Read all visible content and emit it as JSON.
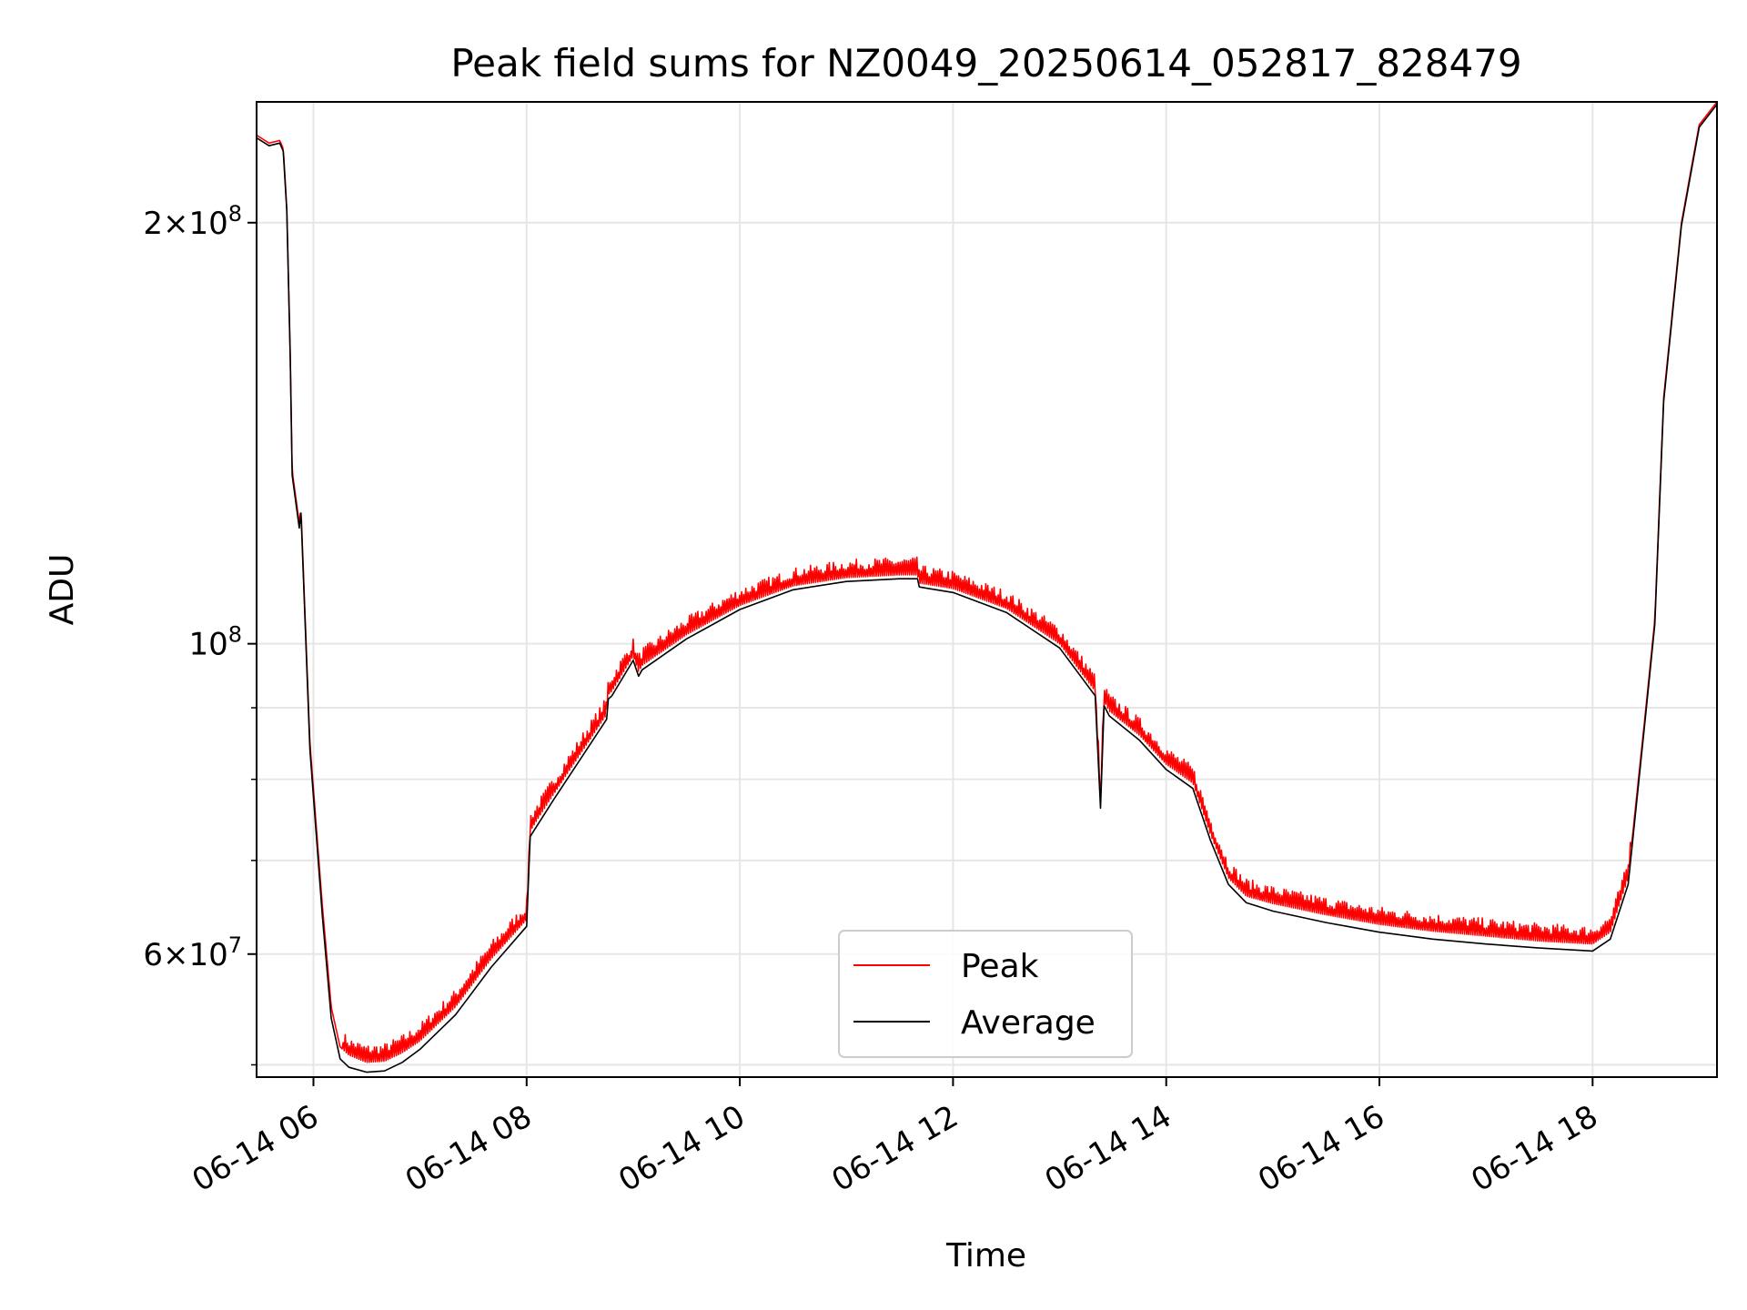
{
  "chart_data": {
    "type": "line",
    "title": "Peak field sums for NZ0049_20250614_052817_828479",
    "xlabel": "Time",
    "ylabel": "ADU",
    "yscale": "log",
    "ylim": [
      49000000,
      244000000
    ],
    "xlim": [
      "2025-06-14 05:28",
      "2025-06-14 19:10"
    ],
    "grid": true,
    "legend_position": "lower center",
    "x_tick_labels": [
      "06-14 06",
      "06-14 08",
      "06-14 10",
      "06-14 12",
      "06-14 14",
      "06-14 16",
      "06-14 18"
    ],
    "x_tick_values": [
      "2025-06-14 06:00",
      "2025-06-14 08:00",
      "2025-06-14 10:00",
      "2025-06-14 12:00",
      "2025-06-14 14:00",
      "2025-06-14 16:00",
      "2025-06-14 18:00"
    ],
    "y_major_ticks": [
      {
        "value": 200000000,
        "base": "2",
        "exp": "8"
      },
      {
        "value": 100000000,
        "base": "",
        "exp": "8"
      },
      {
        "value": 60000000,
        "base": "6",
        "exp": "7"
      }
    ],
    "y_minor_ticks": [
      50000000,
      70000000,
      80000000,
      90000000
    ],
    "series": [
      {
        "name": "Peak",
        "color": "#ff0000",
        "noise": true,
        "x": [
          "2025-06-14 05:28",
          "2025-06-14 05:35",
          "2025-06-14 05:41",
          "2025-06-14 05:43",
          "2025-06-14 05:45",
          "2025-06-14 05:47",
          "2025-06-14 05:48",
          "2025-06-14 05:52",
          "2025-06-14 05:53",
          "2025-06-14 05:58",
          "2025-06-14 06:05",
          "2025-06-14 06:10",
          "2025-06-14 06:15",
          "2025-06-14 06:20",
          "2025-06-14 06:30",
          "2025-06-14 06:40",
          "2025-06-14 06:50",
          "2025-06-14 07:00",
          "2025-06-14 07:20",
          "2025-06-14 07:40",
          "2025-06-14 08:00",
          "2025-06-14 08:02",
          "2025-06-14 08:15",
          "2025-06-14 08:45",
          "2025-06-14 08:46",
          "2025-06-14 08:48",
          "2025-06-14 09:00",
          "2025-06-14 09:03",
          "2025-06-14 09:05",
          "2025-06-14 09:30",
          "2025-06-14 10:00",
          "2025-06-14 10:30",
          "2025-06-14 11:00",
          "2025-06-14 11:30",
          "2025-06-14 11:40",
          "2025-06-14 11:41",
          "2025-06-14 12:00",
          "2025-06-14 12:30",
          "2025-06-14 13:00",
          "2025-06-14 13:20",
          "2025-06-14 13:23",
          "2025-06-14 13:25",
          "2025-06-14 13:28",
          "2025-06-14 13:45",
          "2025-06-14 14:00",
          "2025-06-14 14:15",
          "2025-06-14 14:25",
          "2025-06-14 14:35",
          "2025-06-14 14:45",
          "2025-06-14 15:00",
          "2025-06-14 15:30",
          "2025-06-14 16:00",
          "2025-06-14 16:30",
          "2025-06-14 17:00",
          "2025-06-14 17:30",
          "2025-06-14 17:50",
          "2025-06-14 18:00",
          "2025-06-14 18:10",
          "2025-06-14 18:20",
          "2025-06-14 18:30",
          "2025-06-14 18:35",
          "2025-06-14 18:40",
          "2025-06-14 18:50",
          "2025-06-14 19:00",
          "2025-06-14 19:10"
        ],
        "values": [
          231000000,
          228000000,
          229000000,
          226000000,
          205000000,
          160000000,
          133000000,
          122000000,
          125000000,
          85000000,
          65000000,
          55000000,
          51500000,
          50800000,
          50200000,
          50300000,
          51000000,
          52000000,
          55000000,
          59500000,
          63500000,
          73500000,
          78000000,
          89000000,
          92000000,
          92500000,
          98000000,
          95500000,
          96500000,
          101500000,
          106500000,
          110000000,
          111500000,
          112000000,
          112000000,
          110500000,
          109500000,
          106000000,
          100000000,
          92500000,
          77000000,
          91000000,
          89500000,
          86000000,
          82000000,
          79500000,
          73000000,
          68000000,
          66000000,
          65200000,
          64000000,
          63000000,
          62300000,
          61800000,
          61300000,
          61100000,
          61000000,
          62200000,
          68000000,
          90000000,
          104000000,
          150000000,
          200000000,
          235000000,
          244000000
        ]
      },
      {
        "name": "Average",
        "color": "#000000",
        "noise": false,
        "x": [
          "2025-06-14 05:28",
          "2025-06-14 05:35",
          "2025-06-14 05:41",
          "2025-06-14 05:43",
          "2025-06-14 05:45",
          "2025-06-14 05:47",
          "2025-06-14 05:48",
          "2025-06-14 05:52",
          "2025-06-14 05:53",
          "2025-06-14 05:58",
          "2025-06-14 06:05",
          "2025-06-14 06:10",
          "2025-06-14 06:15",
          "2025-06-14 06:20",
          "2025-06-14 06:30",
          "2025-06-14 06:40",
          "2025-06-14 06:50",
          "2025-06-14 07:00",
          "2025-06-14 07:20",
          "2025-06-14 07:40",
          "2025-06-14 08:00",
          "2025-06-14 08:02",
          "2025-06-14 08:15",
          "2025-06-14 08:45",
          "2025-06-14 08:46",
          "2025-06-14 08:48",
          "2025-06-14 09:00",
          "2025-06-14 09:03",
          "2025-06-14 09:05",
          "2025-06-14 09:30",
          "2025-06-14 10:00",
          "2025-06-14 10:30",
          "2025-06-14 11:00",
          "2025-06-14 11:30",
          "2025-06-14 11:40",
          "2025-06-14 11:41",
          "2025-06-14 12:00",
          "2025-06-14 12:30",
          "2025-06-14 13:00",
          "2025-06-14 13:20",
          "2025-06-14 13:23",
          "2025-06-14 13:25",
          "2025-06-14 13:28",
          "2025-06-14 13:45",
          "2025-06-14 14:00",
          "2025-06-14 14:15",
          "2025-06-14 14:25",
          "2025-06-14 14:35",
          "2025-06-14 14:45",
          "2025-06-14 15:00",
          "2025-06-14 15:30",
          "2025-06-14 16:00",
          "2025-06-14 16:30",
          "2025-06-14 17:00",
          "2025-06-14 17:30",
          "2025-06-14 17:50",
          "2025-06-14 18:00",
          "2025-06-14 18:10",
          "2025-06-14 18:20",
          "2025-06-14 18:30",
          "2025-06-14 18:35",
          "2025-06-14 18:40",
          "2025-06-14 18:50",
          "2025-06-14 19:00",
          "2025-06-14 19:10"
        ],
        "values": [
          230000000,
          227000000,
          228000000,
          225000000,
          204000000,
          159000000,
          132000000,
          121000000,
          124000000,
          84000000,
          64000000,
          54000000,
          50500000,
          49800000,
          49400000,
          49500000,
          50200000,
          51300000,
          54300000,
          58700000,
          62800000,
          72800000,
          77300000,
          88300000,
          91300000,
          91800000,
          97300000,
          94800000,
          95800000,
          100800000,
          105800000,
          109300000,
          110800000,
          111300000,
          111300000,
          109800000,
          108800000,
          105300000,
          99300000,
          91800000,
          76300000,
          90300000,
          88800000,
          85300000,
          81300000,
          78800000,
          72300000,
          67300000,
          65300000,
          64400000,
          63200000,
          62200000,
          61500000,
          61000000,
          60600000,
          60400000,
          60300000,
          61500000,
          67300000,
          89300000,
          103300000,
          149000000,
          199000000,
          234000000,
          243000000
        ]
      }
    ]
  }
}
